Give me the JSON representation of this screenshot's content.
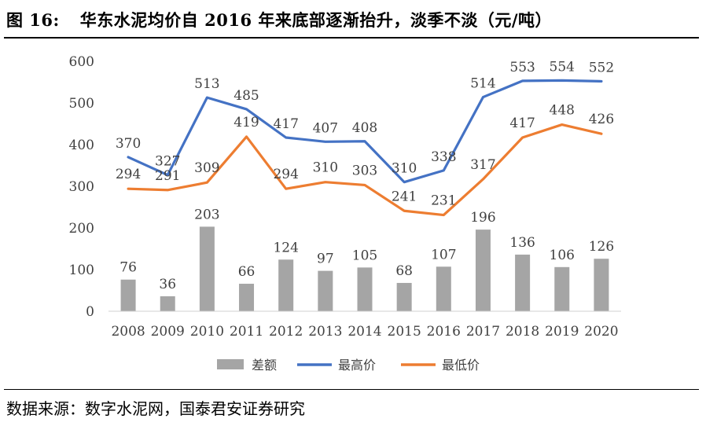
{
  "title": {
    "figure_no": "图 16:",
    "text": "华东水泥均价自 2016 年来底部逐渐抬升，淡季不淡（元/吨）"
  },
  "source": "数据来源：数字水泥网，国泰君安证券研究",
  "chart_data": {
    "type": "bar+line",
    "categories": [
      "2008",
      "2009",
      "2010",
      "2011",
      "2012",
      "2013",
      "2014",
      "2015",
      "2016",
      "2017",
      "2018",
      "2019",
      "2020"
    ],
    "series": [
      {
        "name": "差额",
        "kind": "bar",
        "color": "#a5a5a5",
        "values": [
          76,
          36,
          203,
          66,
          124,
          97,
          105,
          68,
          107,
          196,
          136,
          106,
          126
        ]
      },
      {
        "name": "最高价",
        "kind": "line",
        "color": "#4472c4",
        "values": [
          370,
          327,
          513,
          485,
          417,
          407,
          408,
          310,
          338,
          514,
          553,
          554,
          552
        ]
      },
      {
        "name": "最低价",
        "kind": "line",
        "color": "#ed7d31",
        "values": [
          294,
          291,
          309,
          419,
          294,
          310,
          303,
          241,
          231,
          317,
          417,
          448,
          426
        ]
      }
    ],
    "y_ticks": [
      "0",
      "100",
      "200",
      "300",
      "400",
      "500",
      "600"
    ],
    "ylim": [
      0,
      600
    ],
    "grid": false,
    "legend_position": "bottom"
  }
}
